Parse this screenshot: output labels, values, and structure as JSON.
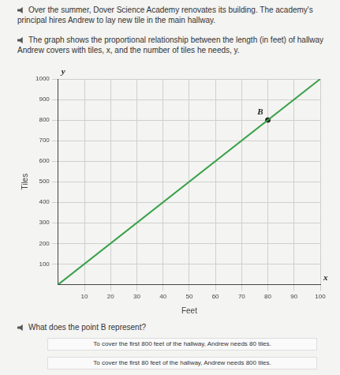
{
  "document": {
    "paragraphs": [
      "Over the summer, Dover Science Academy renovates its building. The academy's principal hires Andrew to lay new tile in the main hallway.",
      "The graph shows the proportional relationship between the length (in feet) of hallway Andrew covers with tiles, x, and the number of tiles he needs, y."
    ],
    "question": "What does the point B represent?",
    "options": [
      "To cover the first 800 feet of the hallway, Andrew needs 80 tiles.",
      "To cover the first 80 feet of the hallway, Andrew needs 800 tiles."
    ]
  },
  "chart_data": {
    "type": "line",
    "x": [
      0,
      100
    ],
    "values": [
      0,
      1000
    ],
    "color": "#3aa04a",
    "marker": "none",
    "xlabel": "Feet",
    "ylabel": "Tiles",
    "xlim": [
      0,
      100
    ],
    "xticks": [
      10,
      20,
      30,
      40,
      50,
      60,
      70,
      80,
      90,
      100
    ],
    "ylim": [
      0,
      1000
    ],
    "yticks": [
      100,
      200,
      300,
      400,
      500,
      600,
      700,
      800,
      900,
      1000
    ],
    "grid": true,
    "points": [
      {
        "x": 80,
        "y": 800,
        "label": "B"
      }
    ],
    "annotations": [
      {
        "text": "y",
        "x": 0,
        "y": 1000
      },
      {
        "text": "x",
        "x": 100,
        "y": 0
      }
    ]
  }
}
